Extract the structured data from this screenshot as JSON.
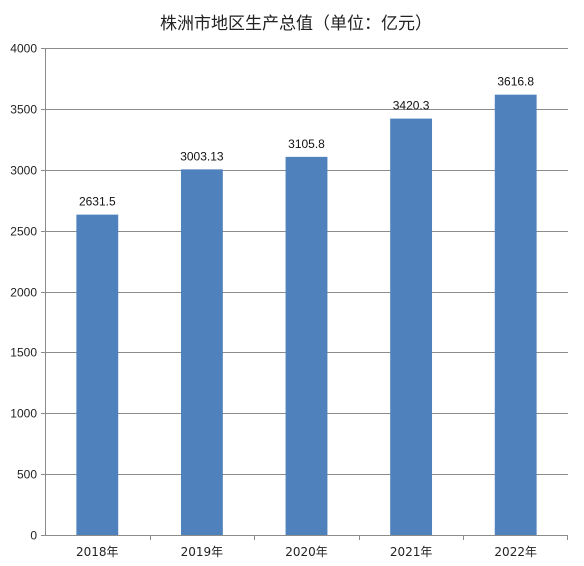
{
  "chart_data": {
    "type": "bar",
    "title": "株洲市地区生产总值（单位：亿元）",
    "xlabel": "",
    "ylabel": "",
    "categories": [
      "2018年",
      "2019年",
      "2020年",
      "2021年",
      "2022年"
    ],
    "values": [
      2631.5,
      3003.13,
      3105.8,
      3420.3,
      3616.8
    ],
    "data_labels": [
      "2631.5",
      "3003.13",
      "3105.8",
      "3420.3",
      "3616.8"
    ],
    "ylim": [
      0,
      4000
    ],
    "yticks": [
      0,
      500,
      1000,
      1500,
      2000,
      2500,
      3000,
      3500,
      4000
    ],
    "grid": true,
    "legend": "none",
    "bar_color": "#4f81bd",
    "grid_color": "#8c8c8c",
    "axis_color": "#8c8c8c"
  }
}
